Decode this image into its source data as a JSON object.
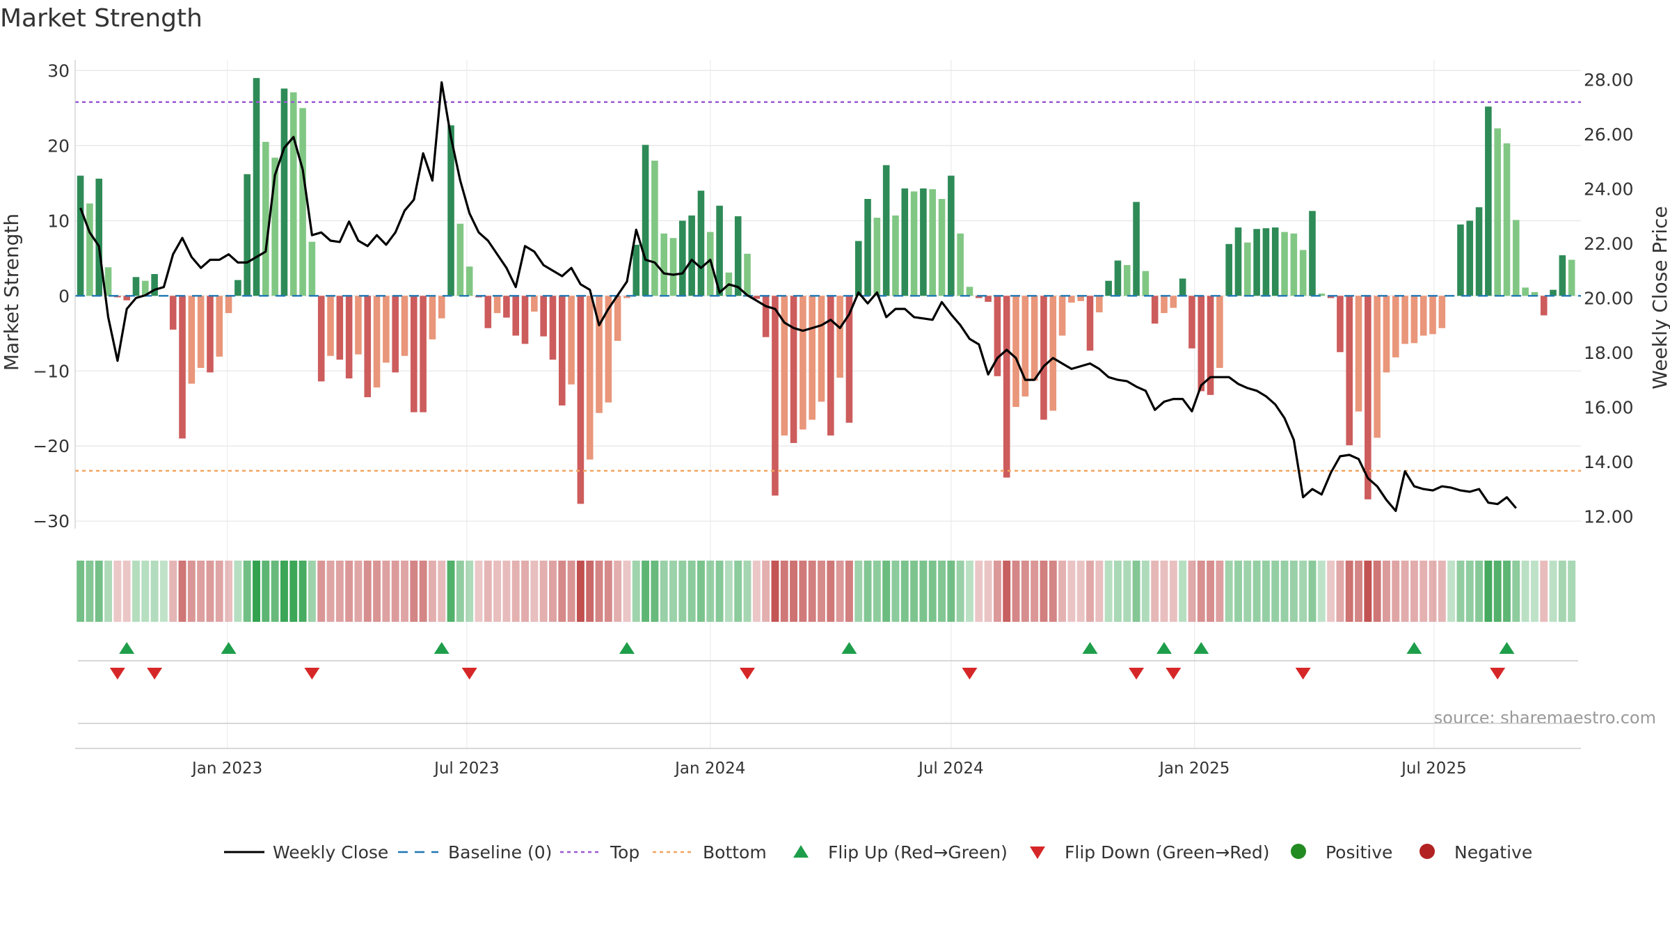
{
  "chart_data": {
    "type": "bar",
    "title": "Market Strength",
    "ylabel": "Market Strength",
    "y2label": "Weekly Close Price",
    "ylim": [
      -31,
      30.5
    ],
    "y2lim": [
      11.55,
      28.47
    ],
    "yticks": [
      30,
      20,
      10,
      0,
      -10,
      -20,
      -30
    ],
    "yticklabels": [
      "30",
      "20",
      "10",
      "0",
      "−10",
      "−20",
      "−30"
    ],
    "y2ticks": [
      28,
      26,
      24,
      22,
      20,
      18,
      16,
      14,
      12
    ],
    "y2ticklabels": [
      "28.00",
      "26.00",
      "24.00",
      "22.00",
      "20.00",
      "18.00",
      "16.00",
      "14.00",
      "12.00"
    ],
    "x_range": [
      "2022-09-08",
      "2025-10-20"
    ],
    "xticks": [
      {
        "date": "2023-01-01",
        "label": "Jan 2023"
      },
      {
        "date": "2023-07-01",
        "label": "Jul 2023"
      },
      {
        "date": "2024-01-01",
        "label": "Jan 2024"
      },
      {
        "date": "2024-07-01",
        "label": "Jul 2024"
      },
      {
        "date": "2025-01-01",
        "label": "Jan 2025"
      },
      {
        "date": "2025-07-01",
        "label": "Jul 2025"
      }
    ],
    "first_week": "2022-09-12",
    "top_threshold": 25.8,
    "bottom_threshold": -23.3,
    "strength": [
      16.0,
      12.3,
      15.6,
      3.8,
      -0.2,
      -0.6,
      2.5,
      2.0,
      2.9,
      0.0,
      -4.5,
      -19.0,
      -11.7,
      -9.6,
      -10.2,
      -8.1,
      -2.3,
      2.1,
      16.2,
      29.0,
      20.5,
      18.4,
      27.6,
      27.1,
      25.0,
      7.2,
      -11.4,
      -8.0,
      -8.5,
      -11.0,
      -7.8,
      -13.5,
      -12.2,
      -8.9,
      -10.2,
      -8.0,
      -15.5,
      -15.5,
      -5.8,
      -3.0,
      22.7,
      9.6,
      3.9,
      -0.2,
      -4.3,
      -2.3,
      -2.9,
      -5.3,
      -6.4,
      -2.1,
      -5.4,
      -8.5,
      -14.6,
      -11.8,
      -27.7,
      -21.8,
      -15.6,
      -14.2,
      -6.0,
      -0.3,
      6.8,
      20.1,
      18.0,
      8.3,
      7.7,
      10.0,
      10.7,
      14.0,
      8.5,
      12.0,
      3.1,
      10.6,
      5.6,
      -0.4,
      -5.5,
      -26.6,
      -18.6,
      -19.6,
      -17.8,
      -16.5,
      -14.1,
      -18.6,
      -10.9,
      -16.9,
      7.3,
      12.9,
      10.4,
      17.4,
      10.7,
      14.3,
      13.9,
      14.3,
      14.2,
      12.9,
      16.0,
      8.3,
      1.2,
      -0.3,
      -0.8,
      -10.7,
      -24.2,
      -14.8,
      -13.4,
      -11.3,
      -16.5,
      -15.3,
      -5.3,
      -0.9,
      -0.7,
      -7.3,
      -2.2,
      2.0,
      4.7,
      4.1,
      12.5,
      3.3,
      -3.7,
      -2.3,
      -1.6,
      2.3,
      -7.0,
      -12.7,
      -13.2,
      -9.6,
      6.9,
      9.1,
      7.1,
      8.9,
      9.0,
      9.1,
      8.5,
      8.3,
      6.1,
      11.3,
      0.3,
      -0.3,
      -7.5,
      -19.9,
      -15.4,
      -27.1,
      -18.9,
      -10.2,
      -8.2,
      -6.4,
      -6.3,
      -5.3,
      -5.1,
      -4.3,
      0.0,
      9.5,
      10.0,
      11.8,
      25.2,
      22.3,
      20.3,
      10.1,
      1.1,
      0.5,
      -2.6,
      0.8,
      5.4,
      4.8
    ],
    "weekly_close": [
      23.3,
      22.4,
      21.9,
      19.3,
      17.7,
      19.6,
      20.0,
      20.1,
      20.3,
      20.4,
      21.6,
      22.2,
      21.5,
      21.1,
      21.4,
      21.4,
      21.6,
      21.3,
      21.3,
      21.5,
      21.7,
      24.5,
      25.5,
      25.9,
      24.7,
      22.3,
      22.4,
      22.1,
      22.05,
      22.8,
      22.1,
      21.9,
      22.3,
      21.95,
      22.4,
      23.2,
      23.6,
      25.3,
      24.3,
      27.9,
      25.9,
      24.3,
      23.1,
      22.4,
      22.1,
      21.6,
      21.1,
      20.4,
      21.9,
      21.7,
      21.2,
      21.0,
      20.8,
      21.1,
      20.5,
      20.3,
      19.0,
      19.6,
      20.1,
      20.6,
      22.5,
      21.4,
      21.3,
      20.9,
      20.85,
      20.9,
      21.4,
      21.1,
      21.4,
      20.2,
      20.5,
      20.4,
      20.1,
      19.9,
      19.7,
      19.6,
      19.1,
      18.9,
      18.8,
      18.9,
      19.0,
      19.2,
      18.9,
      19.4,
      20.2,
      19.8,
      20.2,
      19.3,
      19.6,
      19.6,
      19.3,
      19.25,
      19.2,
      19.85,
      19.4,
      19.0,
      18.5,
      18.3,
      17.2,
      17.8,
      18.1,
      17.8,
      17.0,
      17.0,
      17.5,
      17.8,
      17.6,
      17.4,
      17.5,
      17.6,
      17.4,
      17.1,
      17.0,
      16.95,
      16.75,
      16.6,
      15.9,
      16.2,
      16.3,
      16.3,
      15.85,
      16.8,
      17.1,
      17.1,
      17.1,
      16.85,
      16.7,
      16.6,
      16.4,
      16.1,
      15.6,
      14.8,
      12.7,
      13.0,
      12.8,
      13.6,
      14.2,
      14.25,
      14.1,
      13.4,
      13.1,
      12.6,
      12.2,
      13.65,
      13.1,
      13.0,
      12.95,
      13.1,
      13.05,
      12.95,
      12.9,
      13.0,
      12.5,
      12.45,
      12.7,
      12.3
    ],
    "flip_up_weeks": [
      5,
      16,
      39,
      59,
      83,
      109,
      117,
      121,
      144,
      154
    ],
    "flip_down_weeks": [
      4,
      8,
      25,
      42,
      72,
      96,
      114,
      118,
      132,
      153
    ],
    "colors": {
      "bar_green_strong": "#2e8b57",
      "bar_green_light": "#81c784",
      "bar_red_strong": "#cd5c5c",
      "bar_red_light": "#e9967a",
      "close_line": "#000000",
      "baseline": "#1f77b4",
      "top": "#9b59d0",
      "bottom": "#f4a460",
      "flip_up": "#1e9e4a",
      "flip_down": "#d62728",
      "positive": "#228b22",
      "negative": "#b22222",
      "grid": "#e6e6e6"
    },
    "legend": {
      "position": "bottom",
      "items": [
        {
          "label": "Weekly Close",
          "kind": "line"
        },
        {
          "label": "Baseline (0)",
          "kind": "dash"
        },
        {
          "label": "Top",
          "kind": "dot-top"
        },
        {
          "label": "Bottom",
          "kind": "dot-bottom"
        },
        {
          "label": "Flip Up (Red→Green)",
          "kind": "tri-up"
        },
        {
          "label": "Flip Down (Green→Red)",
          "kind": "tri-down"
        },
        {
          "label": "Positive",
          "kind": "circle-pos"
        },
        {
          "label": "Negative",
          "kind": "circle-neg"
        }
      ]
    },
    "source_note": "source: sharemaestro.com"
  }
}
